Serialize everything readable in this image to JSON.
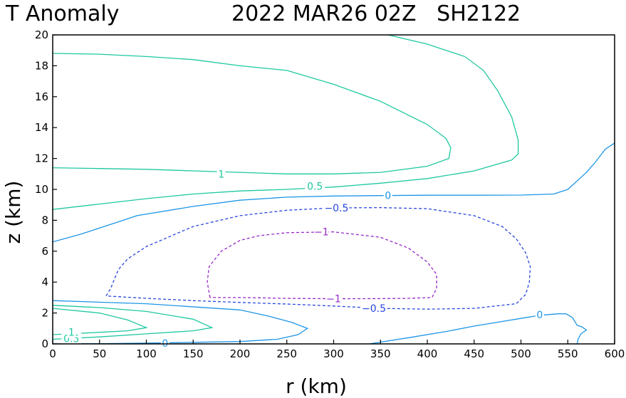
{
  "chart_data": {
    "type": "contour",
    "title_left": "T Anomaly",
    "title_right": "2022 MAR26 02Z   SH2122",
    "xlabel": "r (km)",
    "ylabel": "z (km)",
    "xlim": [
      0,
      600
    ],
    "ylim": [
      0,
      20
    ],
    "xticks": [
      0,
      50,
      100,
      150,
      200,
      250,
      300,
      350,
      400,
      450,
      500,
      550,
      600
    ],
    "yticks": [
      0,
      2,
      4,
      6,
      8,
      10,
      12,
      14,
      16,
      18,
      20
    ],
    "contours": [
      {
        "level": 1,
        "label": "1",
        "color": "#1ec8a0",
        "dashed": false,
        "points": [
          [
            0,
            18.8
          ],
          [
            50,
            18.75
          ],
          [
            100,
            18.6
          ],
          [
            150,
            18.4
          ],
          [
            200,
            18.0
          ],
          [
            250,
            17.7
          ],
          [
            300,
            16.8
          ],
          [
            350,
            15.7
          ],
          [
            400,
            14.2
          ],
          [
            420,
            13.3
          ],
          [
            425,
            12.7
          ],
          [
            423,
            12.0
          ],
          [
            400,
            11.5
          ],
          [
            350,
            11.1
          ],
          [
            300,
            11.0
          ],
          [
            250,
            11.0
          ],
          [
            200,
            11.1
          ],
          [
            150,
            11.2
          ],
          [
            100,
            11.3
          ],
          [
            50,
            11.35
          ],
          [
            0,
            11.4
          ]
        ],
        "labels": [
          {
            "text": "1",
            "r": 180,
            "z": 11.0
          }
        ]
      },
      {
        "level": 0.5,
        "label": "0.5",
        "color": "#1ec8a0",
        "dashed": false,
        "points": [
          [
            358,
            20
          ],
          [
            400,
            19.4
          ],
          [
            440,
            18.6
          ],
          [
            460,
            17.7
          ],
          [
            475,
            16.4
          ],
          [
            490,
            14.7
          ],
          [
            497,
            13.2
          ],
          [
            497,
            12.3
          ],
          [
            490,
            11.9
          ],
          [
            450,
            11.2
          ],
          [
            400,
            10.7
          ],
          [
            350,
            10.4
          ],
          [
            300,
            10.15
          ],
          [
            250,
            10.0
          ],
          [
            200,
            9.9
          ],
          [
            150,
            9.7
          ],
          [
            100,
            9.4
          ],
          [
            50,
            9.05
          ],
          [
            0,
            8.7
          ]
        ],
        "labels": [
          {
            "text": "0.5",
            "r": 280,
            "z": 10.2
          }
        ]
      },
      {
        "level": 0,
        "label": "0",
        "color": "#1e96e6",
        "dashed": false,
        "points": [
          [
            0,
            6.6
          ],
          [
            30,
            7.1
          ],
          [
            70,
            7.9
          ],
          [
            90,
            8.3
          ],
          [
            150,
            8.9
          ],
          [
            200,
            9.3
          ],
          [
            250,
            9.5
          ],
          [
            300,
            9.57
          ],
          [
            350,
            9.6
          ],
          [
            400,
            9.62
          ],
          [
            450,
            9.62
          ],
          [
            500,
            9.63
          ],
          [
            535,
            9.7
          ],
          [
            550,
            10.0
          ],
          [
            570,
            11.1
          ],
          [
            580,
            11.8
          ],
          [
            590,
            12.6
          ],
          [
            600,
            13.0
          ]
        ],
        "labels": [
          {
            "text": "0",
            "r": 358,
            "z": 9.6
          }
        ]
      },
      {
        "level": -0.5,
        "label": "−0.5",
        "color": "#2846dc",
        "dashed": true,
        "points": [
          [
            57,
            3.1
          ],
          [
            62,
            3.6
          ],
          [
            70,
            4.8
          ],
          [
            80,
            5.5
          ],
          [
            100,
            6.3
          ],
          [
            150,
            7.6
          ],
          [
            200,
            8.3
          ],
          [
            250,
            8.65
          ],
          [
            300,
            8.8
          ],
          [
            350,
            8.82
          ],
          [
            400,
            8.75
          ],
          [
            450,
            8.3
          ],
          [
            480,
            7.6
          ],
          [
            495,
            6.8
          ],
          [
            505,
            5.9
          ],
          [
            510,
            5.0
          ],
          [
            509,
            4.0
          ],
          [
            505,
            3.2
          ],
          [
            495,
            2.6
          ],
          [
            450,
            2.3
          ],
          [
            400,
            2.25
          ],
          [
            350,
            2.3
          ],
          [
            300,
            2.45
          ],
          [
            250,
            2.58
          ],
          [
            200,
            2.68
          ],
          [
            150,
            2.8
          ],
          [
            100,
            2.95
          ],
          [
            57,
            3.1
          ]
        ],
        "labels": [
          {
            "text": "−0.5",
            "r": 303,
            "z": 8.8
          },
          {
            "text": "−0.5",
            "r": 343,
            "z": 2.3
          }
        ]
      },
      {
        "level": -1,
        "label": "−1",
        "color": "#9628c8",
        "dashed": true,
        "points": [
          [
            168,
            3.0
          ],
          [
            165,
            4.0
          ],
          [
            167,
            5.0
          ],
          [
            180,
            6.0
          ],
          [
            200,
            6.7
          ],
          [
            220,
            7.0
          ],
          [
            250,
            7.2
          ],
          [
            300,
            7.25
          ],
          [
            350,
            6.9
          ],
          [
            380,
            6.2
          ],
          [
            400,
            5.3
          ],
          [
            410,
            4.5
          ],
          [
            410,
            3.6
          ],
          [
            405,
            3.0
          ],
          [
            380,
            2.95
          ],
          [
            350,
            2.93
          ],
          [
            300,
            2.92
          ],
          [
            250,
            2.95
          ],
          [
            200,
            3.0
          ],
          [
            168,
            3.0
          ]
        ],
        "labels": [
          {
            "text": "−1",
            "r": 287,
            "z": 7.25
          },
          {
            "text": "−1",
            "r": 300,
            "z": 2.92
          }
        ]
      },
      {
        "level": 0,
        "label": "0",
        "color": "#1e96e6",
        "dashed": false,
        "points": [
          [
            0,
            2.8
          ],
          [
            100,
            2.6
          ],
          [
            200,
            2.2
          ],
          [
            230,
            1.8
          ],
          [
            255,
            1.4
          ],
          [
            272,
            1.0
          ],
          [
            262,
            0.6
          ],
          [
            240,
            0.3
          ],
          [
            200,
            0.15
          ],
          [
            150,
            0.1
          ],
          [
            100,
            0.05
          ],
          [
            50,
            0.02
          ],
          [
            0,
            0
          ]
        ],
        "labels": [
          {
            "text": "0",
            "r": 120,
            "z": 0.05
          }
        ]
      },
      {
        "level": 0.5,
        "label": "0.5",
        "color": "#1ec8a0",
        "dashed": false,
        "points": [
          [
            0,
            2.5
          ],
          [
            50,
            2.35
          ],
          [
            100,
            2.1
          ],
          [
            150,
            1.6
          ],
          [
            170,
            1.05
          ],
          [
            150,
            0.85
          ],
          [
            100,
            0.65
          ],
          [
            50,
            0.45
          ],
          [
            0,
            0.3
          ]
        ],
        "labels": [
          {
            "text": "0.5",
            "r": 20,
            "z": 0.35
          }
        ]
      },
      {
        "level": 1,
        "label": "1",
        "color": "#1ec8a0",
        "dashed": false,
        "points": [
          [
            0,
            2.3
          ],
          [
            50,
            2.0
          ],
          [
            80,
            1.55
          ],
          [
            100,
            1.05
          ],
          [
            80,
            0.85
          ],
          [
            50,
            0.75
          ],
          [
            0,
            0.6
          ]
        ],
        "labels": [
          {
            "text": "1",
            "r": 20,
            "z": 0.75
          }
        ]
      },
      {
        "level": 0,
        "label": "0",
        "color": "#1e96e6",
        "dashed": false,
        "points": [
          [
            338,
            0
          ],
          [
            380,
            0.4
          ],
          [
            420,
            0.8
          ],
          [
            450,
            1.15
          ],
          [
            480,
            1.45
          ],
          [
            500,
            1.65
          ],
          [
            520,
            1.85
          ],
          [
            540,
            1.95
          ],
          [
            548,
            1.95
          ],
          [
            555,
            1.7
          ],
          [
            560,
            1.2
          ],
          [
            565,
            1.1
          ],
          [
            570,
            0.9
          ],
          [
            564,
            0.65
          ],
          [
            561,
            0.3
          ],
          [
            560,
            0
          ]
        ],
        "labels": [
          {
            "text": "0",
            "r": 520,
            "z": 1.9
          }
        ]
      }
    ]
  }
}
